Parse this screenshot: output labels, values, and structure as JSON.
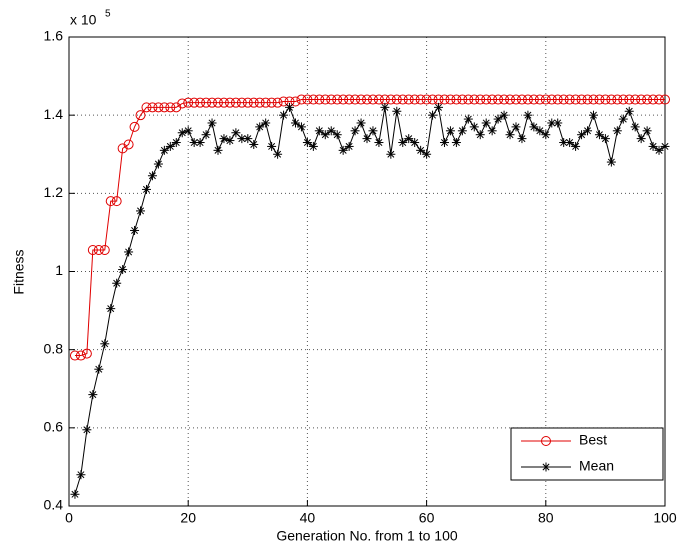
{
  "chart_data": {
    "type": "line",
    "xlabel": "Generation No. from 1 to 100",
    "ylabel": "Fitness",
    "yscale_label": "x 10",
    "yscale_exponent": "5",
    "xlim": [
      0,
      100
    ],
    "xticks": [
      0,
      20,
      40,
      60,
      80,
      100
    ],
    "ylim": [
      0.4,
      1.6
    ],
    "yticks": [
      0.4,
      0.6,
      0.8,
      1,
      1.2,
      1.4,
      1.6
    ],
    "grid": true,
    "legend": "lower right",
    "x": [
      1,
      2,
      3,
      4,
      5,
      6,
      7,
      8,
      9,
      10,
      11,
      12,
      13,
      14,
      15,
      16,
      17,
      18,
      19,
      20,
      21,
      22,
      23,
      24,
      25,
      26,
      27,
      28,
      29,
      30,
      31,
      32,
      33,
      34,
      35,
      36,
      37,
      38,
      39,
      40,
      41,
      42,
      43,
      44,
      45,
      46,
      47,
      48,
      49,
      50,
      51,
      52,
      53,
      54,
      55,
      56,
      57,
      58,
      59,
      60,
      61,
      62,
      63,
      64,
      65,
      66,
      67,
      68,
      69,
      70,
      71,
      72,
      73,
      74,
      75,
      76,
      77,
      78,
      79,
      80,
      81,
      82,
      83,
      84,
      85,
      86,
      87,
      88,
      89,
      90,
      91,
      92,
      93,
      94,
      95,
      96,
      97,
      98,
      99,
      100
    ],
    "series": [
      {
        "name": "Best",
        "color": "#e00000",
        "marker": "o",
        "values": [
          0.785,
          0.785,
          0.79,
          1.055,
          1.055,
          1.055,
          1.18,
          1.18,
          1.315,
          1.325,
          1.37,
          1.4,
          1.42,
          1.42,
          1.42,
          1.42,
          1.42,
          1.42,
          1.43,
          1.432,
          1.432,
          1.432,
          1.432,
          1.432,
          1.432,
          1.432,
          1.432,
          1.432,
          1.432,
          1.432,
          1.432,
          1.432,
          1.432,
          1.432,
          1.432,
          1.435,
          1.435,
          1.435,
          1.44,
          1.44,
          1.44,
          1.44,
          1.44,
          1.44,
          1.44,
          1.44,
          1.44,
          1.44,
          1.44,
          1.44,
          1.44,
          1.44,
          1.44,
          1.44,
          1.44,
          1.44,
          1.44,
          1.44,
          1.44,
          1.44,
          1.44,
          1.44,
          1.44,
          1.44,
          1.44,
          1.44,
          1.44,
          1.44,
          1.44,
          1.44,
          1.44,
          1.44,
          1.44,
          1.44,
          1.44,
          1.44,
          1.44,
          1.44,
          1.44,
          1.44,
          1.44,
          1.44,
          1.44,
          1.44,
          1.44,
          1.44,
          1.44,
          1.44,
          1.44,
          1.44,
          1.44,
          1.44,
          1.44,
          1.44,
          1.44,
          1.44,
          1.44,
          1.44,
          1.44,
          1.44
        ]
      },
      {
        "name": "Mean",
        "color": "#000000",
        "marker": "*",
        "values": [
          0.43,
          0.48,
          0.595,
          0.685,
          0.75,
          0.815,
          0.905,
          0.97,
          1.005,
          1.05,
          1.105,
          1.155,
          1.21,
          1.245,
          1.275,
          1.31,
          1.32,
          1.33,
          1.355,
          1.36,
          1.33,
          1.33,
          1.35,
          1.38,
          1.31,
          1.34,
          1.335,
          1.355,
          1.34,
          1.34,
          1.325,
          1.37,
          1.38,
          1.32,
          1.3,
          1.4,
          1.42,
          1.38,
          1.37,
          1.33,
          1.32,
          1.36,
          1.35,
          1.36,
          1.35,
          1.31,
          1.32,
          1.36,
          1.38,
          1.34,
          1.36,
          1.33,
          1.42,
          1.3,
          1.41,
          1.33,
          1.34,
          1.33,
          1.31,
          1.3,
          1.4,
          1.42,
          1.33,
          1.36,
          1.33,
          1.36,
          1.39,
          1.37,
          1.35,
          1.38,
          1.36,
          1.39,
          1.4,
          1.35,
          1.37,
          1.34,
          1.4,
          1.37,
          1.36,
          1.35,
          1.38,
          1.38,
          1.33,
          1.33,
          1.32,
          1.35,
          1.36,
          1.4,
          1.35,
          1.34,
          1.28,
          1.36,
          1.39,
          1.41,
          1.37,
          1.34,
          1.36,
          1.32,
          1.31,
          1.32
        ]
      }
    ]
  }
}
